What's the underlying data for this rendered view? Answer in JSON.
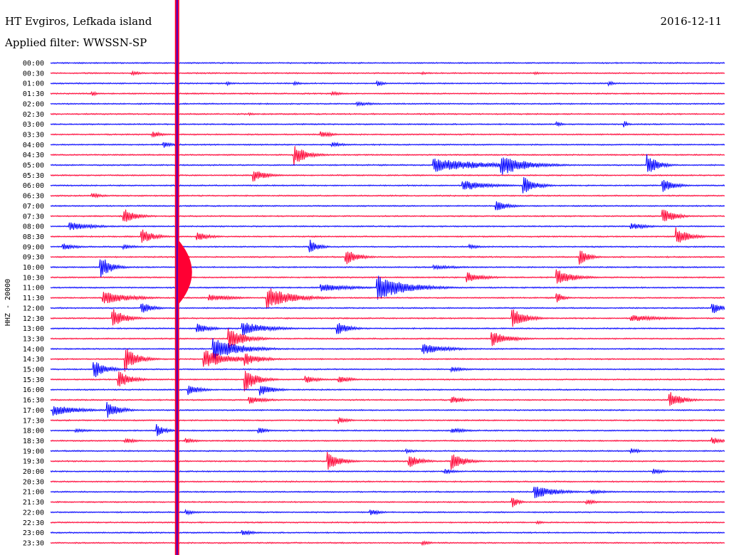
{
  "header": {
    "station": "HT Evgiros, Lefkada island",
    "filter": "Applied filter: WWSSN-SP",
    "date": "2016-12-11"
  },
  "colors": {
    "trace_even": "#0000ff",
    "trace_odd": "#ff0033",
    "background": "#ffffff"
  },
  "chart_data": {
    "type": "line",
    "title": "",
    "xlabel": "",
    "ylabel": "HHZ - 20000",
    "row_labels": [
      "00:00",
      "00:30",
      "01:00",
      "01:30",
      "02:00",
      "02:30",
      "03:00",
      "03:30",
      "04:00",
      "04:30",
      "05:00",
      "05:30",
      "06:00",
      "06:30",
      "07:00",
      "07:30",
      "08:00",
      "08:30",
      "09:00",
      "09:30",
      "10:00",
      "10:30",
      "11:00",
      "11:30",
      "12:00",
      "12:30",
      "13:00",
      "13:30",
      "14:00",
      "14:30",
      "15:00",
      "15:30",
      "16:00",
      "16:30",
      "17:00",
      "17:30",
      "18:00",
      "18:30",
      "19:00",
      "19:30",
      "20:00",
      "20:30",
      "21:00",
      "21:30",
      "22:00",
      "22:30",
      "23:00",
      "23:30"
    ],
    "row_colors": [
      "blue",
      "red"
    ],
    "x_minutes_range": [
      0,
      30
    ],
    "grid": false,
    "events": [
      {
        "row": 0,
        "min": 0.5,
        "amp": 1,
        "dur": 0.4
      },
      {
        "row": 1,
        "min": 3.6,
        "amp": 3,
        "dur": 0.6
      },
      {
        "row": 1,
        "min": 16.5,
        "amp": 2,
        "dur": 0.5
      },
      {
        "row": 1,
        "min": 21.5,
        "amp": 2,
        "dur": 0.6
      },
      {
        "row": 2,
        "min": 7.8,
        "amp": 3,
        "dur": 0.4
      },
      {
        "row": 2,
        "min": 10.8,
        "amp": 3,
        "dur": 0.4
      },
      {
        "row": 2,
        "min": 14.5,
        "amp": 5,
        "dur": 0.3
      },
      {
        "row": 2,
        "min": 24.8,
        "amp": 4,
        "dur": 0.3
      },
      {
        "row": 3,
        "min": 1.8,
        "amp": 4,
        "dur": 0.3
      },
      {
        "row": 3,
        "min": 12.5,
        "amp": 3,
        "dur": 0.6
      },
      {
        "row": 4,
        "min": 13.6,
        "amp": 3,
        "dur": 1.0
      },
      {
        "row": 5,
        "min": 8.8,
        "amp": 2,
        "dur": 0.4
      },
      {
        "row": 6,
        "min": 22.5,
        "amp": 4,
        "dur": 0.3
      },
      {
        "row": 6,
        "min": 25.5,
        "amp": 6,
        "dur": 0.2
      },
      {
        "row": 7,
        "min": 4.5,
        "amp": 5,
        "dur": 0.5
      },
      {
        "row": 7,
        "min": 12.0,
        "amp": 5,
        "dur": 0.6
      },
      {
        "row": 8,
        "min": 5.0,
        "amp": 5,
        "dur": 0.4
      },
      {
        "row": 8,
        "min": 12.5,
        "amp": 4,
        "dur": 0.6
      },
      {
        "row": 9,
        "min": 10.8,
        "amp": 16,
        "dur": 0.6
      },
      {
        "row": 10,
        "min": 17.0,
        "amp": 10,
        "dur": 2.5
      },
      {
        "row": 10,
        "min": 20.0,
        "amp": 16,
        "dur": 1.2
      },
      {
        "row": 10,
        "min": 26.5,
        "amp": 18,
        "dur": 0.5
      },
      {
        "row": 11,
        "min": 9.0,
        "amp": 10,
        "dur": 0.6
      },
      {
        "row": 12,
        "min": 18.3,
        "amp": 8,
        "dur": 1.2
      },
      {
        "row": 12,
        "min": 21.0,
        "amp": 14,
        "dur": 0.6
      },
      {
        "row": 12,
        "min": 27.2,
        "amp": 10,
        "dur": 0.6
      },
      {
        "row": 13,
        "min": 1.8,
        "amp": 4,
        "dur": 0.6
      },
      {
        "row": 14,
        "min": 19.8,
        "amp": 8,
        "dur": 0.6
      },
      {
        "row": 15,
        "min": 3.2,
        "amp": 12,
        "dur": 0.6
      },
      {
        "row": 15,
        "min": 27.2,
        "amp": 12,
        "dur": 0.6
      },
      {
        "row": 16,
        "min": 0.8,
        "amp": 6,
        "dur": 1.2
      },
      {
        "row": 16,
        "min": 25.8,
        "amp": 5,
        "dur": 0.8
      },
      {
        "row": 17,
        "min": 4.0,
        "amp": 12,
        "dur": 0.6
      },
      {
        "row": 17,
        "min": 6.5,
        "amp": 7,
        "dur": 0.6
      },
      {
        "row": 17,
        "min": 27.8,
        "amp": 14,
        "dur": 0.6
      },
      {
        "row": 18,
        "min": 0.5,
        "amp": 6,
        "dur": 0.6
      },
      {
        "row": 18,
        "min": 3.2,
        "amp": 4,
        "dur": 0.6
      },
      {
        "row": 18,
        "min": 11.5,
        "amp": 12,
        "dur": 0.4
      },
      {
        "row": 18,
        "min": 18.6,
        "amp": 4,
        "dur": 0.5
      },
      {
        "row": 19,
        "min": 13.1,
        "amp": 12,
        "dur": 0.6
      },
      {
        "row": 19,
        "min": 23.5,
        "amp": 14,
        "dur": 0.4
      },
      {
        "row": 20,
        "min": 2.2,
        "amp": 18,
        "dur": 0.5
      },
      {
        "row": 20,
        "min": 17.0,
        "amp": 3,
        "dur": 1.5
      },
      {
        "row": 21,
        "min": 18.5,
        "amp": 8,
        "dur": 0.8
      },
      {
        "row": 21,
        "min": 22.5,
        "amp": 12,
        "dur": 0.8
      },
      {
        "row": 22,
        "min": 12.0,
        "amp": 6,
        "dur": 1.5
      },
      {
        "row": 22,
        "min": 14.5,
        "amp": 18,
        "dur": 1.4
      },
      {
        "row": 23,
        "min": 2.3,
        "amp": 10,
        "dur": 1.2
      },
      {
        "row": 23,
        "min": 9.6,
        "amp": 16,
        "dur": 1.2
      },
      {
        "row": 23,
        "min": 7.0,
        "amp": 5,
        "dur": 1.2
      },
      {
        "row": 23,
        "min": 22.5,
        "amp": 10,
        "dur": 0.3
      },
      {
        "row": 24,
        "min": 4.0,
        "amp": 10,
        "dur": 0.5
      },
      {
        "row": 24,
        "min": 29.4,
        "amp": 10,
        "dur": 0.5
      },
      {
        "row": 25,
        "min": 2.7,
        "amp": 16,
        "dur": 0.6
      },
      {
        "row": 25,
        "min": 20.5,
        "amp": 18,
        "dur": 0.6
      },
      {
        "row": 25,
        "min": 25.8,
        "amp": 5,
        "dur": 1.5
      },
      {
        "row": 26,
        "min": 6.5,
        "amp": 8,
        "dur": 0.6
      },
      {
        "row": 26,
        "min": 8.5,
        "amp": 10,
        "dur": 1.2
      },
      {
        "row": 26,
        "min": 12.7,
        "amp": 10,
        "dur": 0.6
      },
      {
        "row": 27,
        "min": 7.9,
        "amp": 16,
        "dur": 0.8
      },
      {
        "row": 27,
        "min": 19.6,
        "amp": 12,
        "dur": 0.8
      },
      {
        "row": 28,
        "min": 7.2,
        "amp": 18,
        "dur": 1.2
      },
      {
        "row": 28,
        "min": 16.5,
        "amp": 8,
        "dur": 1.2
      },
      {
        "row": 29,
        "min": 6.8,
        "amp": 14,
        "dur": 1.2
      },
      {
        "row": 29,
        "min": 3.3,
        "amp": 18,
        "dur": 0.6
      },
      {
        "row": 29,
        "min": 8.6,
        "amp": 10,
        "dur": 0.8
      },
      {
        "row": 30,
        "min": 1.9,
        "amp": 14,
        "dur": 0.6
      },
      {
        "row": 30,
        "min": 17.8,
        "amp": 5,
        "dur": 0.6
      },
      {
        "row": 31,
        "min": 3.0,
        "amp": 14,
        "dur": 0.6
      },
      {
        "row": 31,
        "min": 8.6,
        "amp": 18,
        "dur": 0.6
      },
      {
        "row": 31,
        "min": 11.3,
        "amp": 6,
        "dur": 0.6
      },
      {
        "row": 31,
        "min": 12.8,
        "amp": 6,
        "dur": 0.6
      },
      {
        "row": 32,
        "min": 6.1,
        "amp": 8,
        "dur": 0.6
      },
      {
        "row": 32,
        "min": 9.3,
        "amp": 10,
        "dur": 0.6
      },
      {
        "row": 33,
        "min": 8.8,
        "amp": 6,
        "dur": 0.8
      },
      {
        "row": 33,
        "min": 17.8,
        "amp": 6,
        "dur": 0.6
      },
      {
        "row": 33,
        "min": 27.5,
        "amp": 14,
        "dur": 0.6
      },
      {
        "row": 34,
        "min": 0.1,
        "amp": 8,
        "dur": 1.2
      },
      {
        "row": 34,
        "min": 2.5,
        "amp": 12,
        "dur": 0.6
      },
      {
        "row": 35,
        "min": 12.8,
        "amp": 5,
        "dur": 0.5
      },
      {
        "row": 36,
        "min": 1.1,
        "amp": 3,
        "dur": 0.8
      },
      {
        "row": 36,
        "min": 4.7,
        "amp": 10,
        "dur": 0.4
      },
      {
        "row": 36,
        "min": 9.2,
        "amp": 6,
        "dur": 0.4
      },
      {
        "row": 36,
        "min": 17.8,
        "amp": 4,
        "dur": 0.8
      },
      {
        "row": 37,
        "min": 3.3,
        "amp": 4,
        "dur": 0.6
      },
      {
        "row": 37,
        "min": 6.0,
        "amp": 4,
        "dur": 0.6
      },
      {
        "row": 37,
        "min": 29.4,
        "amp": 6,
        "dur": 0.5
      },
      {
        "row": 38,
        "min": 15.8,
        "amp": 3,
        "dur": 0.6
      },
      {
        "row": 38,
        "min": 25.8,
        "amp": 4,
        "dur": 0.5
      },
      {
        "row": 39,
        "min": 12.3,
        "amp": 14,
        "dur": 0.6
      },
      {
        "row": 39,
        "min": 15.9,
        "amp": 10,
        "dur": 0.6
      },
      {
        "row": 39,
        "min": 17.8,
        "amp": 14,
        "dur": 0.6
      },
      {
        "row": 40,
        "min": 17.5,
        "amp": 4,
        "dur": 0.6
      },
      {
        "row": 40,
        "min": 26.8,
        "amp": 4,
        "dur": 0.6
      },
      {
        "row": 42,
        "min": 21.5,
        "amp": 10,
        "dur": 1.0
      },
      {
        "row": 42,
        "min": 24.0,
        "amp": 3,
        "dur": 1.0
      },
      {
        "row": 43,
        "min": 20.5,
        "amp": 10,
        "dur": 0.3
      },
      {
        "row": 43,
        "min": 23.8,
        "amp": 4,
        "dur": 0.6
      },
      {
        "row": 44,
        "min": 6.0,
        "amp": 4,
        "dur": 0.5
      },
      {
        "row": 44,
        "min": 14.2,
        "amp": 5,
        "dur": 0.5
      },
      {
        "row": 45,
        "min": 21.6,
        "amp": 3,
        "dur": 0.4
      },
      {
        "row": 46,
        "min": 8.5,
        "amp": 4,
        "dur": 0.6
      },
      {
        "row": 47,
        "min": 16.5,
        "amp": 4,
        "dur": 0.4
      }
    ]
  }
}
